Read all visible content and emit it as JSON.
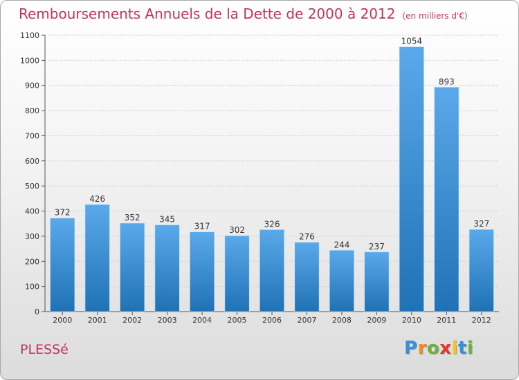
{
  "chart_data": {
    "type": "bar",
    "title": "Remboursements Annuels de la Dette de 2000 à 2012",
    "subtitle": "(en milliers d'€)",
    "categories": [
      "2000",
      "2001",
      "2002",
      "2003",
      "2004",
      "2005",
      "2006",
      "2007",
      "2008",
      "2009",
      "2010",
      "2011",
      "2012"
    ],
    "values": [
      372,
      426,
      352,
      345,
      317,
      302,
      326,
      276,
      244,
      237,
      1054,
      893,
      327
    ],
    "ylim": [
      0,
      1100
    ],
    "yticks": [
      0,
      100,
      200,
      300,
      400,
      500,
      600,
      700,
      800,
      900,
      1000,
      1100
    ],
    "grid": true,
    "xlabel": "",
    "ylabel": ""
  },
  "commune": "PLESSé",
  "brand": {
    "name": "Proxiti",
    "letters": [
      "P",
      "r",
      "o",
      "x",
      "i",
      "t",
      "i"
    ],
    "letter_colors": [
      "#3a8fd6",
      "#f28c1e",
      "#6cb33f",
      "#e6352b",
      "#f7c31e",
      "#3a8fd6",
      "#6cb33f"
    ]
  },
  "colors": {
    "bar_top": "#5aa9ea",
    "bar_bottom": "#1f72b5",
    "title": "#c2335d",
    "grid": "#cfcfcf"
  }
}
